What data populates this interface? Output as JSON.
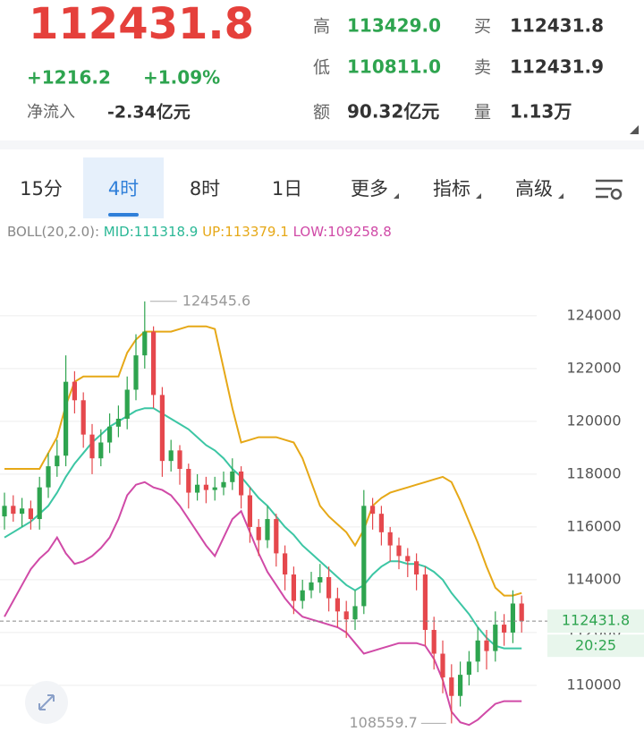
{
  "header": {
    "price": "112431.8",
    "arrow": "↘",
    "change": "+1216.2",
    "change_pct": "+1.09%",
    "net_flow_label": "净流入",
    "net_flow": "-2.34亿元",
    "stats": [
      {
        "label": "高",
        "value": "113429.0"
      },
      {
        "label": "低",
        "value": "110811.0"
      },
      {
        "label": "额",
        "value": "90.32亿元"
      },
      {
        "label": "买",
        "value": "112431.8"
      },
      {
        "label": "卖",
        "value": "112431.9"
      },
      {
        "label": "量",
        "value": "1.13万"
      }
    ]
  },
  "tabs": [
    "15分",
    "4时",
    "8时",
    "1日",
    "更多",
    "指标",
    "高级"
  ],
  "indicator": {
    "name": "BOLL(20,2.0):",
    "mid": "MID:111318.9",
    "up": "UP:113379.1",
    "low": "LOW:109258.8"
  },
  "countdown": "20:25",
  "chart_data": {
    "type": "candlestick",
    "ylim": [
      107930,
      126810
    ],
    "yticks": [
      110000,
      112000,
      114000,
      116000,
      118000,
      120000,
      122000,
      124000
    ],
    "grid": true,
    "up_color": "#2ea44f",
    "down_color": "#e5484d",
    "candles": {
      "open": [
        116400,
        116800,
        116500,
        116700,
        116300,
        117500,
        118300,
        118700,
        121500,
        120800,
        119500,
        118600,
        119200,
        119800,
        120100,
        121200,
        122500,
        123400,
        121000,
        118500,
        118900,
        118200,
        117300,
        117600,
        117400,
        117500,
        117700,
        118100,
        117200,
        116000,
        115500,
        116300,
        115000,
        114200,
        113200,
        113600,
        113900,
        114100,
        113300,
        112800,
        112500,
        113000,
        116800,
        116500,
        115800,
        115300,
        114900,
        114700,
        114200,
        112100,
        111200,
        110300,
        109600,
        110400,
        110900,
        111700,
        111300,
        112300,
        112000,
        113100
      ],
      "high": [
        117300,
        117200,
        117100,
        117000,
        117900,
        118800,
        119300,
        122500,
        121900,
        121100,
        119900,
        119700,
        120300,
        120600,
        121700,
        123300,
        124545.6,
        123600,
        121300,
        119300,
        119100,
        118400,
        118000,
        117900,
        117900,
        118100,
        118600,
        118300,
        117500,
        116300,
        116800,
        116500,
        115300,
        114500,
        114000,
        114300,
        114600,
        114500,
        113700,
        113200,
        113600,
        117400,
        117100,
        116800,
        116000,
        115600,
        115200,
        115000,
        114500,
        112600,
        111700,
        110800,
        110900,
        111300,
        112200,
        112100,
        112800,
        112700,
        113600,
        113400
      ],
      "low": [
        115900,
        116200,
        116000,
        115900,
        115900,
        117100,
        117900,
        118300,
        120300,
        119000,
        118000,
        118300,
        118800,
        119400,
        119700,
        120800,
        122000,
        120500,
        117900,
        118100,
        117600,
        116700,
        117000,
        116900,
        117000,
        117200,
        117400,
        116700,
        115400,
        114900,
        115200,
        114500,
        113600,
        112700,
        112900,
        113300,
        113500,
        112800,
        112200,
        111800,
        112100,
        112700,
        115900,
        115300,
        114700,
        114400,
        114100,
        113600,
        111500,
        110600,
        109700,
        108559.7,
        109200,
        110000,
        110500,
        110600,
        110900,
        111500,
        111600,
        112000
      ],
      "close": [
        116800,
        116500,
        116700,
        116300,
        117500,
        118300,
        118700,
        121500,
        120800,
        119500,
        118600,
        119200,
        119800,
        120100,
        121200,
        122500,
        123400,
        121000,
        118500,
        118900,
        118200,
        117300,
        117600,
        117400,
        117500,
        117700,
        118100,
        117200,
        116000,
        115500,
        116300,
        115000,
        114200,
        113200,
        113600,
        113900,
        114100,
        113300,
        112800,
        112500,
        113000,
        116800,
        116500,
        115800,
        115300,
        114900,
        114700,
        114200,
        112100,
        111200,
        110300,
        109600,
        110400,
        110900,
        111700,
        111300,
        112300,
        112000,
        113100,
        112431.8
      ]
    },
    "series": [
      {
        "name": "UP",
        "color": "#e6a817",
        "values": [
          118200,
          118200,
          118200,
          118200,
          118200,
          118800,
          119400,
          120600,
          121500,
          121700,
          121700,
          121700,
          121700,
          121700,
          122600,
          123100,
          123400,
          123400,
          123400,
          123400,
          123500,
          123600,
          123600,
          123600,
          123500,
          122000,
          120500,
          119200,
          119300,
          119400,
          119400,
          119400,
          119300,
          119200,
          118600,
          117700,
          116800,
          116400,
          116100,
          115800,
          115300,
          115900,
          116800,
          117100,
          117300,
          117400,
          117500,
          117600,
          117700,
          117800,
          117900,
          117700,
          117000,
          116200,
          115400,
          114500,
          113700,
          113400,
          113400,
          113500
        ]
      },
      {
        "name": "MID",
        "color": "#3cc6a4",
        "values": [
          115600,
          115800,
          116000,
          116200,
          116500,
          116800,
          117300,
          117900,
          118400,
          118800,
          119200,
          119500,
          119800,
          120000,
          120200,
          120400,
          120500,
          120500,
          120300,
          120100,
          119900,
          119700,
          119400,
          119100,
          118900,
          118600,
          118200,
          117900,
          117500,
          117100,
          116800,
          116400,
          116000,
          115700,
          115300,
          115000,
          114700,
          114400,
          114100,
          113800,
          113600,
          113800,
          114200,
          114500,
          114700,
          114700,
          114600,
          114600,
          114500,
          114300,
          114000,
          113500,
          113100,
          112700,
          112200,
          111800,
          111500,
          111400,
          111400,
          111400
        ]
      },
      {
        "name": "LOW",
        "color": "#d04aa7",
        "values": [
          112600,
          113200,
          113800,
          114400,
          114800,
          115100,
          115600,
          115000,
          114600,
          114700,
          114900,
          115200,
          115600,
          116300,
          117200,
          117600,
          117700,
          117500,
          117400,
          117200,
          116800,
          116300,
          115800,
          115300,
          114900,
          115600,
          116300,
          116600,
          115800,
          115000,
          114300,
          113800,
          113300,
          112900,
          112600,
          112500,
          112400,
          112300,
          112200,
          112000,
          111600,
          111200,
          111300,
          111400,
          111500,
          111600,
          111600,
          111600,
          111500,
          111000,
          110200,
          109000,
          108600,
          108500,
          108700,
          109000,
          109300,
          109400,
          109400,
          109400
        ]
      }
    ]
  }
}
